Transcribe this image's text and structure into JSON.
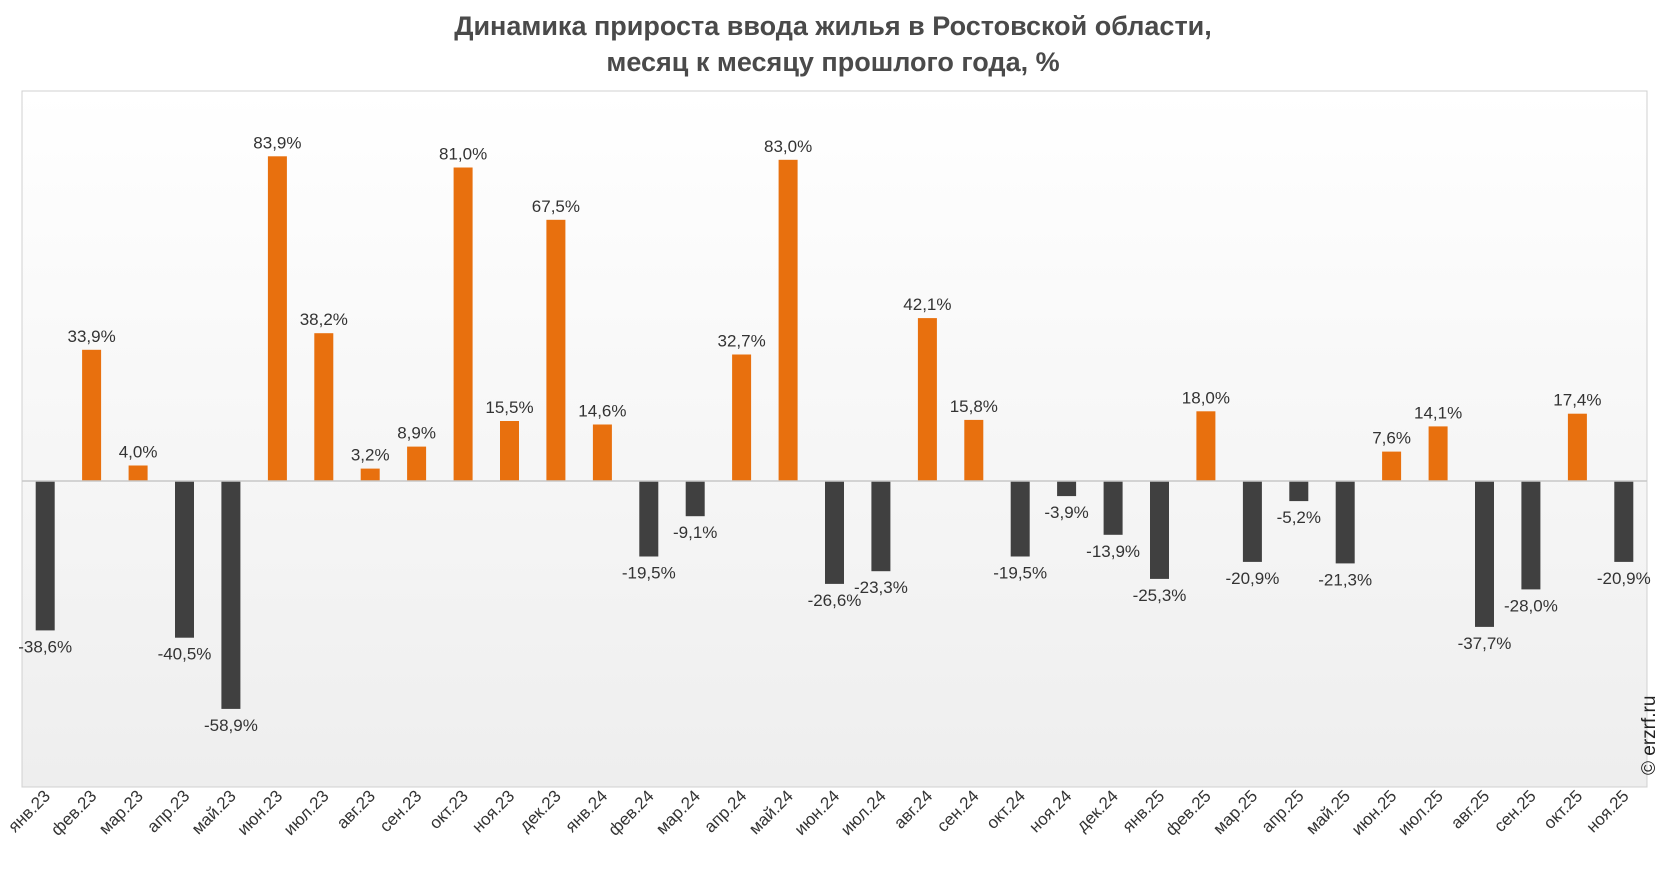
{
  "chart_data": {
    "type": "bar",
    "title_line1": "Динамика прироста ввода жилья в Ростовской области,",
    "title_line2": "месяц к месяцу прошлого года, %",
    "categories": [
      "янв.23",
      "фев.23",
      "мар.23",
      "апр.23",
      "май.23",
      "июн.23",
      "июл.23",
      "авг.23",
      "сен.23",
      "окт.23",
      "ноя.23",
      "дек.23",
      "янв.24",
      "фев.24",
      "мар.24",
      "апр.24",
      "май.24",
      "июн.24",
      "июл.24",
      "авг.24",
      "сен.24",
      "окт.24",
      "ноя.24",
      "дек.24",
      "янв.25",
      "фев.25",
      "мар.25",
      "апр.25",
      "май.25",
      "июн.25",
      "июл.25",
      "авг.25",
      "сен.25",
      "окт.25",
      "ноя.25"
    ],
    "values": [
      -38.6,
      33.9,
      4.0,
      -40.5,
      -58.9,
      83.9,
      38.2,
      3.2,
      8.9,
      81.0,
      15.5,
      67.5,
      14.6,
      -19.5,
      -9.1,
      32.7,
      83.0,
      -26.6,
      -23.3,
      42.1,
      15.8,
      -19.5,
      -3.9,
      -13.9,
      -25.3,
      18.0,
      -20.9,
      -5.2,
      -21.3,
      7.6,
      14.1,
      -37.7,
      -28.0,
      17.4,
      -20.9
    ],
    "labels": [
      "-38,6%",
      "33,9%",
      "4,0%",
      "-40,5%",
      "-58,9%",
      "83,9%",
      "38,2%",
      "3,2%",
      "8,9%",
      "81,0%",
      "15,5%",
      "67,5%",
      "14,6%",
      "-19,5%",
      "-9,1%",
      "32,7%",
      "83,0%",
      "-26,6%",
      "-23,3%",
      "42,1%",
      "15,8%",
      "-19,5%",
      "-3,9%",
      "-13,9%",
      "-25,3%",
      "18,0%",
      "-20,9%",
      "-5,2%",
      "-21,3%",
      "7,6%",
      "14,1%",
      "-37,7%",
      "-28,0%",
      "17,4%",
      "-20,9%"
    ],
    "ylim": [
      -80,
      100
    ],
    "grid": false,
    "colors": {
      "positive": "#e8700e",
      "negative": "#404040"
    }
  },
  "credit": "© erzrf.ru"
}
